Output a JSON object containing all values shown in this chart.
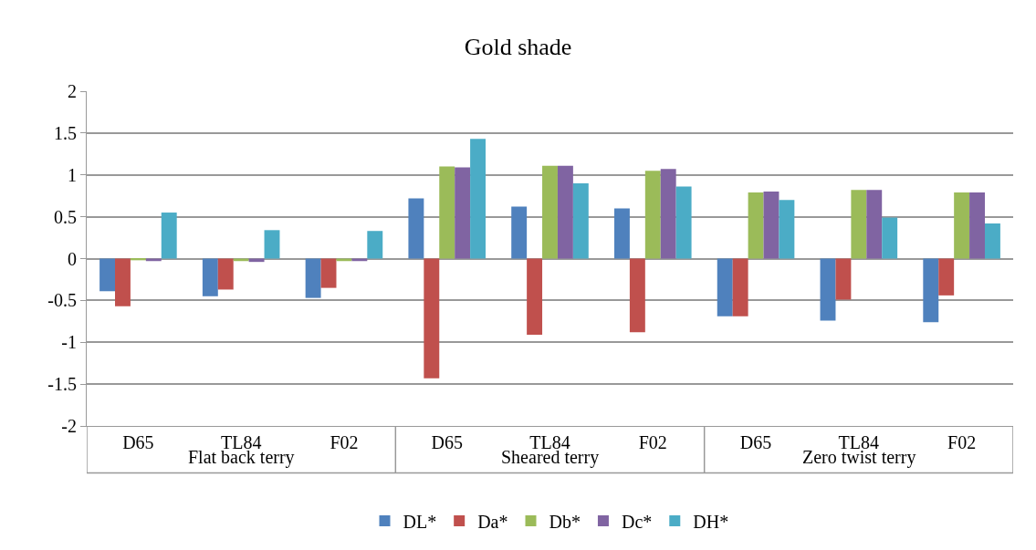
{
  "chart_data": {
    "type": "bar",
    "title": "Gold shade",
    "categories": [
      "D65",
      "TL84",
      "F02",
      "D65",
      "TL84",
      "F02",
      "D65",
      "TL84",
      "F02"
    ],
    "series": [
      {
        "name": "DL*",
        "color": "#4f81bd",
        "values": [
          -0.39,
          -0.45,
          -0.47,
          0.72,
          0.62,
          0.6,
          -0.69,
          -0.74,
          -0.76
        ]
      },
      {
        "name": "Da*",
        "color": "#c0504d",
        "values": [
          -0.57,
          -0.37,
          -0.35,
          -1.43,
          -0.91,
          -0.88,
          -0.69,
          -0.49,
          -0.44
        ]
      },
      {
        "name": "Db*",
        "color": "#9bbb59",
        "values": [
          -0.02,
          -0.03,
          -0.03,
          1.1,
          1.11,
          1.05,
          0.79,
          0.82,
          0.79
        ]
      },
      {
        "name": "Dc*",
        "color": "#8064a2",
        "values": [
          -0.03,
          -0.04,
          -0.03,
          1.09,
          1.11,
          1.07,
          0.8,
          0.82,
          0.79
        ]
      },
      {
        "name": "DH*",
        "color": "#4bacc6",
        "values": [
          0.55,
          0.34,
          0.33,
          1.43,
          0.9,
          0.86,
          0.7,
          0.49,
          0.42
        ]
      }
    ],
    "annotations": [
      "Flat back terry",
      "Sheared terry",
      "Zero twist terry"
    ],
    "ylim": [
      -2,
      2
    ],
    "yticks": [
      -2,
      -1.5,
      -1,
      -0.5,
      0,
      0.5,
      1,
      1.5,
      2
    ],
    "grid": "y",
    "legend": "bottom"
  }
}
